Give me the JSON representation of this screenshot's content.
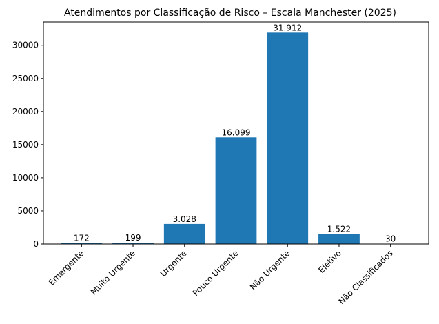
{
  "chart_data": {
    "type": "bar",
    "title": "Atendimentos por Classificação de Risco – Escala Manchester (2025)",
    "categories": [
      "Emergente",
      "Muito Urgente",
      "Urgente",
      "Pouco Urgente",
      "Não Urgente",
      "Eletivo",
      "Não Classificados"
    ],
    "values": [
      172,
      199,
      3028,
      16099,
      31912,
      1522,
      30
    ],
    "value_labels": [
      "172",
      "199",
      "3.028",
      "16.099",
      "31.912",
      "1.522",
      "30"
    ],
    "color": "#1f77b4",
    "ylim": [
      0,
      33508
    ],
    "yticks": [
      0,
      5000,
      10000,
      15000,
      20000,
      25000,
      30000
    ],
    "grid": false
  }
}
